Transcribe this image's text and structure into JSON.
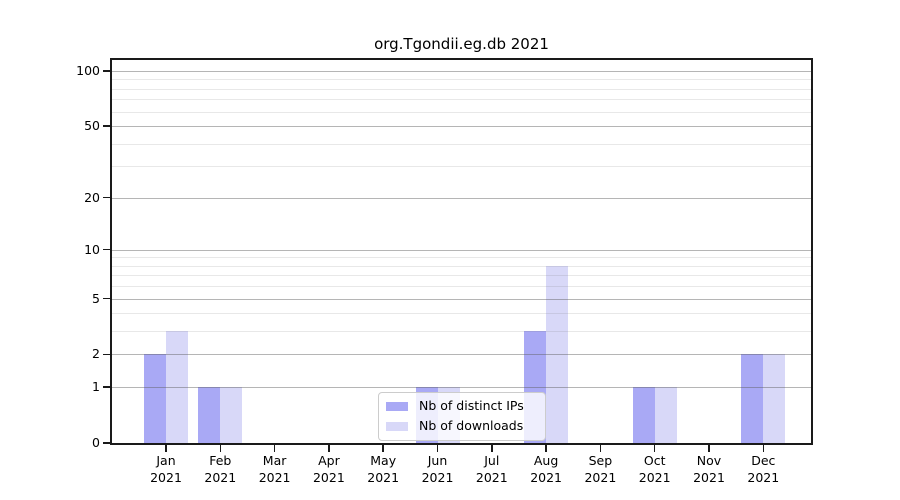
{
  "chart_data": {
    "type": "bar",
    "title": "org.Tgondii.eg.db 2021",
    "categories": [
      "Jan 2021",
      "Feb 2021",
      "Mar 2021",
      "Apr 2021",
      "May 2021",
      "Jun 2021",
      "Jul 2021",
      "Aug 2021",
      "Sep 2021",
      "Oct 2021",
      "Nov 2021",
      "Dec 2021"
    ],
    "series": [
      {
        "name": "Nb of distinct IPs",
        "color": "#a9a9f5",
        "values": [
          2,
          1,
          0,
          0,
          0,
          1,
          0,
          3,
          0,
          1,
          0,
          2
        ]
      },
      {
        "name": "Nb of downloads",
        "color": "#d8d8f8",
        "values": [
          3,
          1,
          0,
          0,
          0,
          1,
          0,
          8,
          0,
          1,
          0,
          2
        ]
      }
    ],
    "xlabel": "",
    "ylabel": "",
    "y_axis": {
      "scale": "log1p",
      "major_ticks": [
        0,
        1,
        2,
        5,
        10,
        20,
        50,
        100
      ],
      "minor_gridlines": [
        3,
        4,
        6,
        7,
        8,
        9,
        30,
        40,
        60,
        70,
        80,
        90
      ],
      "ylim": [
        0,
        100
      ]
    },
    "grid": "on",
    "legend_position": "bottom-center"
  }
}
